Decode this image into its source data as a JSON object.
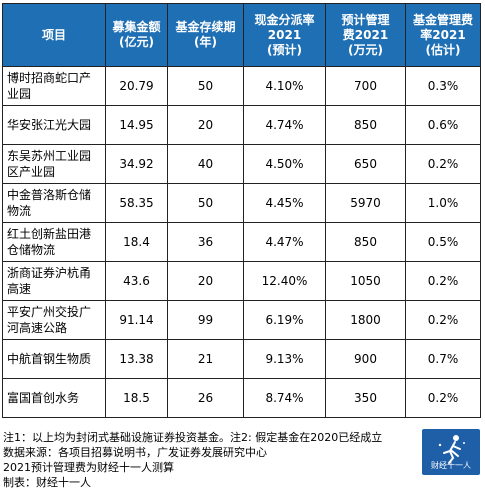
{
  "table": {
    "headers": [
      "项目",
      "募集金额(亿元)",
      "基金存续期(年)",
      "现金分派率2021(预计)",
      "预计管理费2021(万元)",
      "基金管理费率2021(估计)"
    ],
    "header_lines": [
      [
        "项目"
      ],
      [
        "募集金额",
        "(亿元)"
      ],
      [
        "基金存续期",
        "(年)"
      ],
      [
        "现金分派率",
        "2021",
        "(预计)"
      ],
      [
        "预计管理",
        "费2021",
        "(万元)"
      ],
      [
        "基金管理费",
        "率2021",
        "(估计)"
      ]
    ],
    "rows": [
      {
        "name_lines": [
          "博时招商蛇口产",
          "业园"
        ],
        "amount": "20.79",
        "term": "50",
        "payout": "4.10%",
        "fee": "700",
        "fee_rate": "0.3%"
      },
      {
        "name_lines": [
          "华安张江光大园"
        ],
        "amount": "14.95",
        "term": "20",
        "payout": "4.74%",
        "fee": "850",
        "fee_rate": "0.6%"
      },
      {
        "name_lines": [
          "东吴苏州工业园",
          "区产业园"
        ],
        "amount": "34.92",
        "term": "40",
        "payout": "4.50%",
        "fee": "650",
        "fee_rate": "0.2%"
      },
      {
        "name_lines": [
          "中金普洛斯仓储",
          "物流"
        ],
        "amount": "58.35",
        "term": "50",
        "payout": "4.45%",
        "fee": "5970",
        "fee_rate": "1.0%"
      },
      {
        "name_lines": [
          "红土创新盐田港",
          "仓储物流"
        ],
        "amount": "18.4",
        "term": "36",
        "payout": "4.47%",
        "fee": "850",
        "fee_rate": "0.5%"
      },
      {
        "name_lines": [
          "浙商证券沪杭甬",
          "高速"
        ],
        "amount": "43.6",
        "term": "20",
        "payout": "12.40%",
        "fee": "1050",
        "fee_rate": "0.2%"
      },
      {
        "name_lines": [
          "平安广州交投广",
          "河高速公路"
        ],
        "amount": "91.14",
        "term": "99",
        "payout": "6.19%",
        "fee": "1800",
        "fee_rate": "0.2%"
      },
      {
        "name_lines": [
          "中航首钢生物质"
        ],
        "amount": "13.38",
        "term": "21",
        "payout": "9.13%",
        "fee": "900",
        "fee_rate": "0.7%"
      },
      {
        "name_lines": [
          "富国首创水务"
        ],
        "amount": "18.5",
        "term": "26",
        "payout": "8.74%",
        "fee": "350",
        "fee_rate": "0.2%"
      }
    ]
  },
  "notes": [
    "注1：以上均为封闭式基础设施证券投资基金。注2: 假定基金在2020已经成立",
    "数据来源：各项目招募说明书，广发证券发展研究中心",
    "2021预计管理费为财经十一人测算",
    "制表：财经十一人"
  ],
  "logo": {
    "text": "财经十一人",
    "color": "#1f5fa8",
    "icon": "runner-logo-icon"
  },
  "colors": {
    "header_bg": "#1f6fb4",
    "header_text": "#ffffff",
    "border": "#222222"
  }
}
